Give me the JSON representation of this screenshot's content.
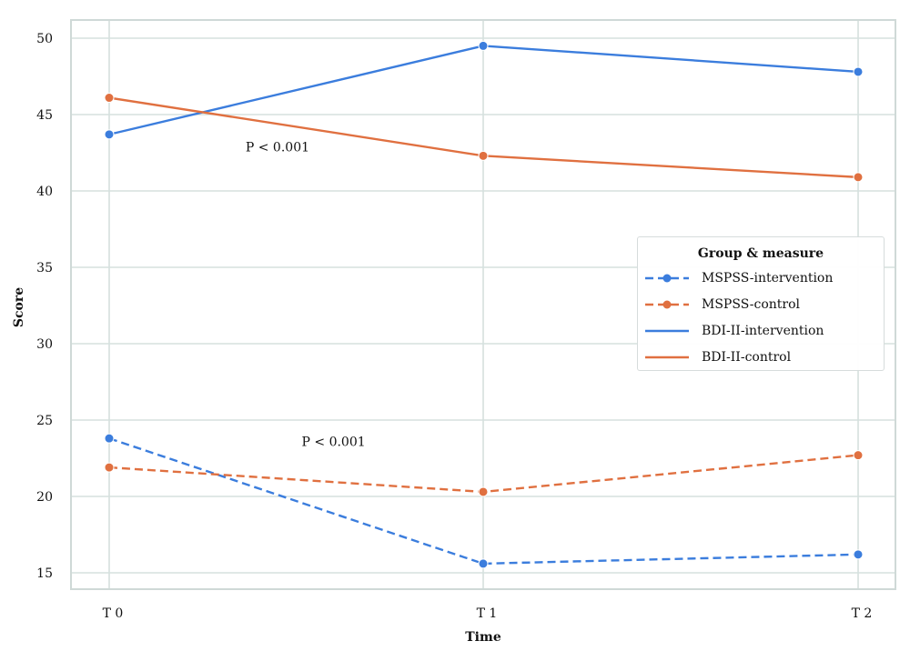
{
  "chart_data": {
    "type": "line",
    "title": "",
    "xlabel": "Time",
    "ylabel": "Score",
    "categories": [
      "T 0",
      "T 1",
      "T 2"
    ],
    "ylim": [
      14,
      51.2
    ],
    "yticks": [
      15,
      20,
      25,
      30,
      35,
      40,
      45,
      50
    ],
    "grid": true,
    "legend": {
      "title": "Group & measure",
      "position": "center-right"
    },
    "series": [
      {
        "name": "MSPSS-intervention",
        "values": [
          23.8,
          15.6,
          16.2
        ],
        "color": "#3b7ddd",
        "dashed": true,
        "markers": true
      },
      {
        "name": "MSPSS-control",
        "values": [
          21.9,
          20.3,
          22.7
        ],
        "color": "#e07040",
        "dashed": true,
        "markers": true
      },
      {
        "name": "BDI-II-intervention",
        "values": [
          43.7,
          49.5,
          47.8
        ],
        "color": "#3b7ddd",
        "dashed": false,
        "markers": true
      },
      {
        "name": "BDI-II-control",
        "values": [
          46.1,
          42.3,
          40.9
        ],
        "color": "#e07040",
        "dashed": false,
        "markers": true
      }
    ],
    "annotations": [
      {
        "text": "P < 0.001",
        "x": 0.45,
        "y": 42.6
      },
      {
        "text": "P < 0.001",
        "x": 0.6,
        "y": 23.3
      }
    ]
  },
  "colors": {
    "grid": "#d5e0de",
    "frame": "#cfd9d7",
    "intervention": "#3b7ddd",
    "control": "#e07040"
  }
}
